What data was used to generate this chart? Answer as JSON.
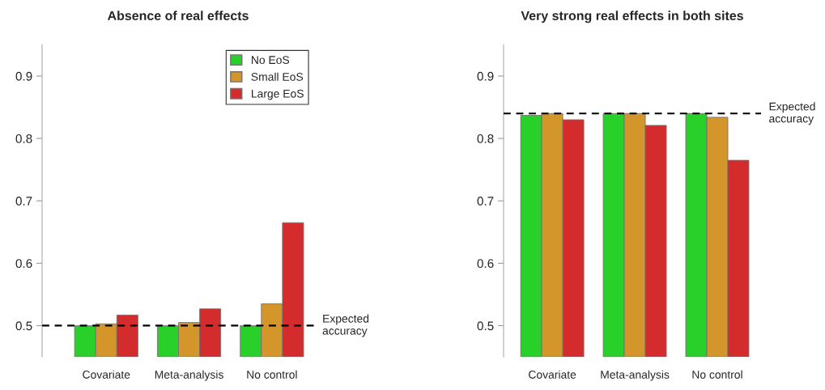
{
  "chart_data": [
    {
      "type": "bar",
      "title": "Absence of real effects",
      "categories": [
        "Covariate",
        "Meta-analysis",
        "No control"
      ],
      "series": [
        {
          "name": "No EoS",
          "color": "#2ad02a",
          "values": [
            0.5,
            0.5,
            0.5
          ]
        },
        {
          "name": "Small EoS",
          "color": "#d4962a",
          "values": [
            0.503,
            0.505,
            0.535
          ]
        },
        {
          "name": "Large EoS",
          "color": "#d42c2c",
          "values": [
            0.517,
            0.527,
            0.665
          ]
        }
      ],
      "ylim": [
        0.45,
        0.95
      ],
      "yticks": [
        0.5,
        0.6,
        0.7,
        0.8,
        0.9
      ],
      "grid": false,
      "legend": "top right",
      "ref_lines": [
        {
          "axis": "y",
          "value": 0.5,
          "label": "Expected\naccuracy",
          "color": "#000000",
          "line_style": "dashed"
        }
      ]
    },
    {
      "type": "bar",
      "title": "Very strong real effects in both sites",
      "categories": [
        "Covariate",
        "Meta-analysis",
        "No control"
      ],
      "series": [
        {
          "color": "#2ad02a",
          "values": [
            0.837,
            0.84,
            0.84
          ]
        },
        {
          "color": "#d4962a",
          "values": [
            0.84,
            0.84,
            0.834
          ]
        },
        {
          "color": "#d42c2c",
          "values": [
            0.83,
            0.821,
            0.765
          ]
        }
      ],
      "ylim": [
        0.45,
        0.95
      ],
      "yticks": [
        0.5,
        0.6,
        0.7,
        0.8,
        0.9
      ],
      "grid": false,
      "legend": false,
      "ref_lines": [
        {
          "axis": "y",
          "value": 0.84,
          "label": "Expected\naccuracy",
          "color": "#000000",
          "line_style": "dashed"
        }
      ]
    }
  ]
}
